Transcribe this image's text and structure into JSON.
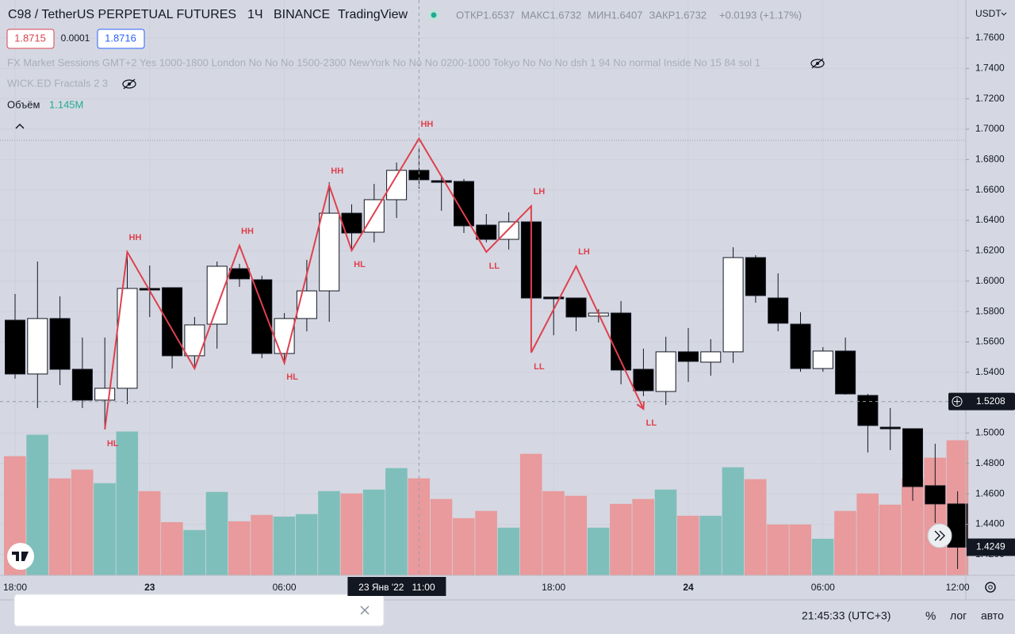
{
  "header": {
    "symbol": "C98 / TetherUS PERPETUAL FUTURES",
    "interval": "1Ч",
    "exchange": "BINANCE",
    "source": "TradingView",
    "ohlc": [
      {
        "key": "ОТКР",
        "value": "1.6537"
      },
      {
        "key": "МАКС",
        "value": "1.6732"
      },
      {
        "key": "МИН",
        "value": "1.6407"
      },
      {
        "key": "ЗАКР",
        "value": "1.6732"
      }
    ],
    "change": "+0.0193 (+1.17%)",
    "bid": "1.8715",
    "spread": "0.0001",
    "ask": "1.8716",
    "indicator_sessions": "FX Market Sessions GMT+2 Yes 1000-1800 London No No No 1500-2300 NewYork No No No 0200-1000 Tokyo No No No dsh 1 94 No normal Inside No 15 84 sol 1",
    "indicator_fractals": "WICK.ED Fractals 2 3",
    "volume_name": "Объём",
    "volume_value": "1.145M",
    "currency": "USDT"
  },
  "chart_data": {
    "type": "candlestick",
    "ylim": [
      1.4064,
      1.785
    ],
    "yticks": [
      {
        "value": 1.76,
        "label": "1.7600"
      },
      {
        "value": 1.74,
        "label": "1.7400"
      },
      {
        "value": 1.72,
        "label": "1.7200"
      },
      {
        "value": 1.7,
        "label": "1.7000"
      },
      {
        "value": 1.68,
        "label": "1.6800"
      },
      {
        "value": 1.66,
        "label": "1.6600"
      },
      {
        "value": 1.64,
        "label": "1.6400"
      },
      {
        "value": 1.62,
        "label": "1.6200"
      },
      {
        "value": 1.6,
        "label": "1.6000"
      },
      {
        "value": 1.58,
        "label": "1.5800"
      },
      {
        "value": 1.56,
        "label": "1.5600"
      },
      {
        "value": 1.54,
        "label": "1.5400"
      },
      {
        "value": 1.52,
        "label": "1.5200"
      },
      {
        "value": 1.5,
        "label": "1.5000"
      },
      {
        "value": 1.48,
        "label": "1.4800"
      },
      {
        "value": 1.46,
        "label": "1.4600"
      },
      {
        "value": 1.44,
        "label": "1.4400"
      },
      {
        "value": 1.42,
        "label": "1.4200"
      }
    ],
    "categories": [
      "18:00",
      null,
      null,
      null,
      null,
      null,
      "23",
      null,
      null,
      null,
      null,
      null,
      "06:00",
      null,
      null,
      null,
      null,
      null,
      null,
      null,
      null,
      null,
      null,
      null,
      "18:00",
      null,
      null,
      null,
      null,
      null,
      "24",
      null,
      null,
      null,
      null,
      null,
      "06:00",
      null,
      null,
      null,
      null,
      null,
      "12:00"
    ],
    "candles": [
      {
        "o": 1.5743,
        "h": 1.5916,
        "l": 1.5358,
        "c": 1.5389
      },
      {
        "o": 1.5389,
        "h": 1.6129,
        "l": 1.5165,
        "c": 1.5754
      },
      {
        "o": 1.5754,
        "h": 1.59,
        "l": 1.5316,
        "c": 1.542
      },
      {
        "o": 1.542,
        "h": 1.5629,
        "l": 1.5165,
        "c": 1.5217
      },
      {
        "o": 1.5217,
        "h": 1.5629,
        "l": 1.5034,
        "c": 1.5295
      },
      {
        "o": 1.5295,
        "h": 1.6182,
        "l": 1.5191,
        "c": 1.5952
      },
      {
        "o": 1.5952,
        "h": 1.6103,
        "l": 1.5764,
        "c": 1.5942
      },
      {
        "o": 1.5957,
        "h": 1.5957,
        "l": 1.5425,
        "c": 1.5509
      },
      {
        "o": 1.5509,
        "h": 1.5764,
        "l": 1.5425,
        "c": 1.5712
      },
      {
        "o": 1.5717,
        "h": 1.6129,
        "l": 1.5556,
        "c": 1.6098
      },
      {
        "o": 1.6082,
        "h": 1.6114,
        "l": 1.5962,
        "c": 1.6015
      },
      {
        "o": 1.6009,
        "h": 1.6035,
        "l": 1.5493,
        "c": 1.5524
      },
      {
        "o": 1.5524,
        "h": 1.579,
        "l": 1.5451,
        "c": 1.5754
      },
      {
        "o": 1.5754,
        "h": 1.614,
        "l": 1.567,
        "c": 1.5936
      },
      {
        "o": 1.5936,
        "h": 1.6651,
        "l": 1.5733,
        "c": 1.6447
      },
      {
        "o": 1.6447,
        "h": 1.6505,
        "l": 1.6202,
        "c": 1.6317
      },
      {
        "o": 1.6322,
        "h": 1.664,
        "l": 1.6255,
        "c": 1.6536
      },
      {
        "o": 1.6536,
        "h": 1.6781,
        "l": 1.6416,
        "c": 1.6729
      },
      {
        "o": 1.6729,
        "h": 1.6875,
        "l": 1.6609,
        "c": 1.6667
      },
      {
        "o": 1.6661,
        "h": 1.6693,
        "l": 1.6463,
        "c": 1.6656
      },
      {
        "o": 1.6656,
        "h": 1.6672,
        "l": 1.6317,
        "c": 1.6364
      },
      {
        "o": 1.6369,
        "h": 1.6442,
        "l": 1.6255,
        "c": 1.6275
      },
      {
        "o": 1.6275,
        "h": 1.6453,
        "l": 1.6208,
        "c": 1.639
      },
      {
        "o": 1.639,
        "h": 1.6494,
        "l": 1.5869,
        "c": 1.5889
      },
      {
        "o": 1.5895,
        "h": 1.5895,
        "l": 1.5644,
        "c": 1.5884
      },
      {
        "o": 1.5889,
        "h": 1.5889,
        "l": 1.567,
        "c": 1.5764
      },
      {
        "o": 1.577,
        "h": 1.5816,
        "l": 1.5728,
        "c": 1.579
      },
      {
        "o": 1.579,
        "h": 1.5869,
        "l": 1.5321,
        "c": 1.5415
      },
      {
        "o": 1.542,
        "h": 1.5556,
        "l": 1.5243,
        "c": 1.5279
      },
      {
        "o": 1.5274,
        "h": 1.5634,
        "l": 1.5185,
        "c": 1.5535
      },
      {
        "o": 1.5535,
        "h": 1.5691,
        "l": 1.5337,
        "c": 1.5472
      },
      {
        "o": 1.5467,
        "h": 1.5618,
        "l": 1.5378,
        "c": 1.5535
      },
      {
        "o": 1.5535,
        "h": 1.6223,
        "l": 1.5462,
        "c": 1.6155
      },
      {
        "o": 1.6155,
        "h": 1.6171,
        "l": 1.5858,
        "c": 1.5905
      },
      {
        "o": 1.5889,
        "h": 1.6051,
        "l": 1.567,
        "c": 1.5723
      },
      {
        "o": 1.5717,
        "h": 1.5796,
        "l": 1.5404,
        "c": 1.5425
      },
      {
        "o": 1.5425,
        "h": 1.5566,
        "l": 1.5404,
        "c": 1.554
      },
      {
        "o": 1.554,
        "h": 1.5629,
        "l": 1.5253,
        "c": 1.5258
      },
      {
        "o": 1.5248,
        "h": 1.5258,
        "l": 1.4873,
        "c": 1.505
      },
      {
        "o": 1.5039,
        "h": 1.5165,
        "l": 1.4888,
        "c": 1.5034
      },
      {
        "o": 1.5029,
        "h": 1.5029,
        "l": 1.4554,
        "c": 1.4648
      },
      {
        "o": 1.4654,
        "h": 1.493,
        "l": 1.4409,
        "c": 1.4534
      },
      {
        "o": 1.4534,
        "h": 1.4617,
        "l": 1.4106,
        "c": 1.4249
      }
    ],
    "volumes": [
      1010000,
      1192000,
      822000,
      896000,
      781000,
      1219000,
      714000,
      451000,
      384000,
      707000,
      458000,
      512000,
      498000,
      519000,
      714000,
      694000,
      727000,
      909000,
      822000,
      647000,
      485000,
      546000,
      404000,
      1030000,
      714000,
      674000,
      404000,
      606000,
      647000,
      727000,
      505000,
      505000,
      916000,
      815000,
      431000,
      431000,
      310000,
      546000,
      694000,
      599000,
      822000,
      997000,
      1145000
    ],
    "up_color": "#7fbfbb",
    "down_color": "#e89a9c",
    "zigzag_color": "#e0404e",
    "pivots": [
      {
        "index": 4,
        "price": 1.5024,
        "label": "HL"
      },
      {
        "index": 5,
        "price": 1.6192,
        "label": "HH"
      },
      {
        "index": 8,
        "price": 1.5425,
        "label": null
      },
      {
        "index": 10,
        "price": 1.6234,
        "label": "HH"
      },
      {
        "index": 12,
        "price": 1.5462,
        "label": "HL"
      },
      {
        "index": 14,
        "price": 1.663,
        "label": "HH"
      },
      {
        "index": 15,
        "price": 1.6202,
        "label": "HL"
      },
      {
        "index": 18,
        "price": 1.6938,
        "label": "HH"
      },
      {
        "index": 21,
        "price": 1.6192,
        "label": "LL"
      },
      {
        "index": 23,
        "price": 1.6494,
        "label": "LH"
      },
      {
        "index": 23,
        "price": 1.553,
        "label": "LL"
      },
      {
        "index": 25,
        "price": 1.6098,
        "label": "LH"
      },
      {
        "index": 28,
        "price": 1.5159,
        "label": "LL"
      }
    ],
    "crosshair": {
      "index": 18,
      "price": 1.5208,
      "time_label": "23 Янв '22   11:00"
    }
  },
  "footer": {
    "clock": "21:45:33 (UTC+3)",
    "percent": "%",
    "log": "лог",
    "auto": "авто"
  }
}
